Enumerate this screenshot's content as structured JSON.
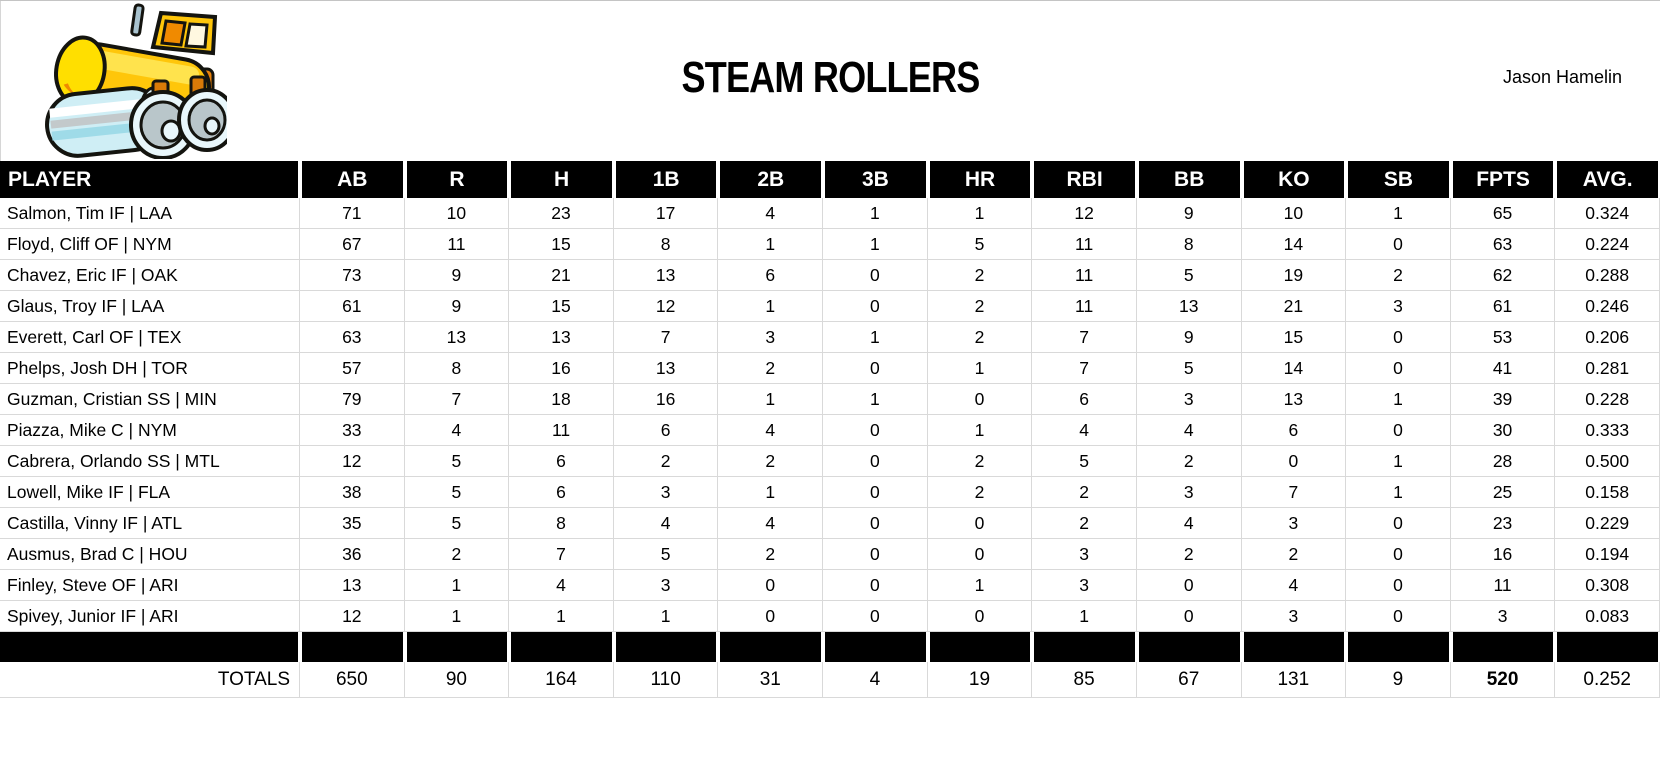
{
  "header": {
    "team_name": "STEAM ROLLERS",
    "owner": "Jason Hamelin",
    "logo": "steam-roller-logo"
  },
  "colors": {
    "header_bg": "#000000",
    "header_text": "#ffffff",
    "grid_line": "#d9d9d9",
    "logo_yellow": "#ffc60a",
    "logo_orange": "#e8820c",
    "logo_roller_blue": "#cfeef5"
  },
  "table": {
    "columns": [
      "PLAYER",
      "AB",
      "R",
      "H",
      "1B",
      "2B",
      "3B",
      "HR",
      "RBI",
      "BB",
      "KO",
      "SB",
      "FPTS",
      "AVG."
    ],
    "rows": [
      {
        "player": "Salmon, Tim IF | LAA",
        "stats": [
          71,
          10,
          23,
          17,
          4,
          1,
          1,
          12,
          9,
          10,
          1,
          65,
          "0.324"
        ]
      },
      {
        "player": "Floyd, Cliff OF | NYM",
        "stats": [
          67,
          11,
          15,
          8,
          1,
          1,
          5,
          11,
          8,
          14,
          0,
          63,
          "0.224"
        ]
      },
      {
        "player": "Chavez, Eric IF | OAK",
        "stats": [
          73,
          9,
          21,
          13,
          6,
          0,
          2,
          11,
          5,
          19,
          2,
          62,
          "0.288"
        ]
      },
      {
        "player": "Glaus, Troy IF | LAA",
        "stats": [
          61,
          9,
          15,
          12,
          1,
          0,
          2,
          11,
          13,
          21,
          3,
          61,
          "0.246"
        ]
      },
      {
        "player": "Everett, Carl OF | TEX",
        "stats": [
          63,
          13,
          13,
          7,
          3,
          1,
          2,
          7,
          9,
          15,
          0,
          53,
          "0.206"
        ]
      },
      {
        "player": "Phelps, Josh DH | TOR",
        "stats": [
          57,
          8,
          16,
          13,
          2,
          0,
          1,
          7,
          5,
          14,
          0,
          41,
          "0.281"
        ]
      },
      {
        "player": "Guzman, Cristian SS | MIN",
        "stats": [
          79,
          7,
          18,
          16,
          1,
          1,
          0,
          6,
          3,
          13,
          1,
          39,
          "0.228"
        ]
      },
      {
        "player": "Piazza, Mike C | NYM",
        "stats": [
          33,
          4,
          11,
          6,
          4,
          0,
          1,
          4,
          4,
          6,
          0,
          30,
          "0.333"
        ]
      },
      {
        "player": "Cabrera, Orlando SS | MTL",
        "stats": [
          12,
          5,
          6,
          2,
          2,
          0,
          2,
          5,
          2,
          0,
          1,
          28,
          "0.500"
        ]
      },
      {
        "player": "Lowell, Mike IF | FLA",
        "stats": [
          38,
          5,
          6,
          3,
          1,
          0,
          2,
          2,
          3,
          7,
          1,
          25,
          "0.158"
        ]
      },
      {
        "player": "Castilla, Vinny IF | ATL",
        "stats": [
          35,
          5,
          8,
          4,
          4,
          0,
          0,
          2,
          4,
          3,
          0,
          23,
          "0.229"
        ]
      },
      {
        "player": "Ausmus, Brad C | HOU",
        "stats": [
          36,
          2,
          7,
          5,
          2,
          0,
          0,
          3,
          2,
          2,
          0,
          16,
          "0.194"
        ]
      },
      {
        "player": "Finley, Steve OF | ARI",
        "stats": [
          13,
          1,
          4,
          3,
          0,
          0,
          1,
          3,
          0,
          4,
          0,
          11,
          "0.308"
        ]
      },
      {
        "player": "Spivey, Junior IF | ARI",
        "stats": [
          12,
          1,
          1,
          1,
          0,
          0,
          0,
          1,
          0,
          3,
          0,
          3,
          "0.083"
        ]
      }
    ],
    "totals": {
      "label": "TOTALS",
      "stats": [
        650,
        90,
        164,
        110,
        31,
        4,
        19,
        85,
        67,
        131,
        9,
        520,
        "0.252"
      ],
      "bold_stat_index": 11
    }
  }
}
